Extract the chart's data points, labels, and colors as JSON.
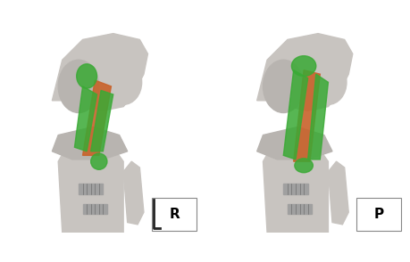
{
  "figure_width": 4.6,
  "figure_height": 2.94,
  "dpi": 100,
  "bg_color": "#ffffff",
  "left_label": "R",
  "right_label": "P",
  "label_box_color": "#ffffff",
  "label_text_color": "#000000",
  "label_fontsize": 11,
  "label_fontweight": "bold",
  "bone_color": "#c8c4c0",
  "bone_color2": "#b8b4b0",
  "graft_green": "#3aaa35",
  "graft_orange": "#c8622a",
  "screw_color": "#a0a0a0"
}
